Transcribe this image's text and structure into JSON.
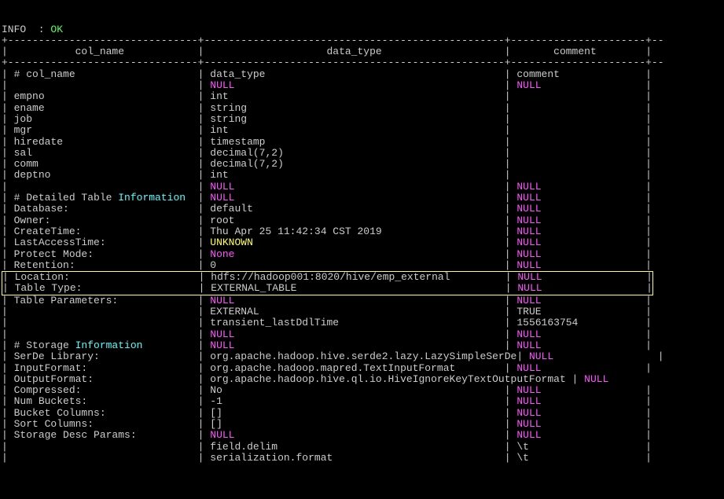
{
  "colors": {
    "background": "#000000",
    "text": "#cccccc",
    "green": "#55ff55",
    "magenta": "#ff55ff",
    "yellow": "#ffff55",
    "cyan": "#55ffff"
  },
  "info_line": {
    "prefix": "INFO  : ",
    "status": "OK"
  },
  "header": {
    "col1": "col_name",
    "col2": "data_type",
    "col3": "comment"
  },
  "layout": {
    "col1_width": 31,
    "col2_width": 49,
    "col3_width": 22
  },
  "rows": [
    {
      "c1": "# col_name",
      "c2": "data_type",
      "c3": "comment",
      "s1": "w",
      "s2": "w",
      "s3": "w"
    },
    {
      "c1": "",
      "c2": "NULL",
      "c3": "NULL",
      "s1": "w",
      "s2": "m",
      "s3": "m"
    },
    {
      "c1": "empno",
      "c2": "int",
      "c3": "",
      "s1": "w",
      "s2": "w",
      "s3": "w"
    },
    {
      "c1": "ename",
      "c2": "string",
      "c3": "",
      "s1": "w",
      "s2": "w",
      "s3": "w"
    },
    {
      "c1": "job",
      "c2": "string",
      "c3": "",
      "s1": "w",
      "s2": "w",
      "s3": "w"
    },
    {
      "c1": "mgr",
      "c2": "int",
      "c3": "",
      "s1": "w",
      "s2": "w",
      "s3": "w"
    },
    {
      "c1": "hiredate",
      "c2": "timestamp",
      "c3": "",
      "s1": "w",
      "s2": "w",
      "s3": "w"
    },
    {
      "c1": "sal",
      "c2": "decimal(7,2)",
      "c3": "",
      "s1": "w",
      "s2": "w",
      "s3": "w"
    },
    {
      "c1": "comm",
      "c2": "decimal(7,2)",
      "c3": "",
      "s1": "w",
      "s2": "w",
      "s3": "w"
    },
    {
      "c1": "deptno",
      "c2": "int",
      "c3": "",
      "s1": "w",
      "s2": "w",
      "s3": "w"
    },
    {
      "c1": "",
      "c2": "NULL",
      "c3": "NULL",
      "s1": "w",
      "s2": "m",
      "s3": "m"
    },
    {
      "c1": "# Detailed Table ",
      "c1b": "Information",
      "c2": "NULL",
      "c3": "NULL",
      "s1": "w",
      "s1b": "c",
      "s2": "m",
      "s3": "m"
    },
    {
      "c1": "Database:",
      "c2": "default",
      "c3": "NULL",
      "s1": "w",
      "s2": "w",
      "s3": "m"
    },
    {
      "c1": "Owner:",
      "c2": "root",
      "c3": "NULL",
      "s1": "w",
      "s2": "w",
      "s3": "m"
    },
    {
      "c1": "CreateTime:",
      "c2": "Thu Apr 25 11:42:34 CST 2019",
      "c3": "NULL",
      "s1": "w",
      "s2": "w",
      "s3": "m"
    },
    {
      "c1": "LastAccessTime:",
      "c2": "UNKNOWN",
      "c3": "NULL",
      "s1": "w",
      "s2": "y",
      "s3": "m"
    },
    {
      "c1": "Protect Mode:",
      "c2": "None",
      "c3": "NULL",
      "s1": "w",
      "s2": "m",
      "s3": "m"
    },
    {
      "c1": "Retention:",
      "c2": "0",
      "c3": "NULL",
      "s1": "w",
      "s2": "w",
      "s3": "m"
    },
    {
      "c1": "Location:",
      "c2": "hdfs://hadoop001:8020/hive/emp_external",
      "c3": "NULL",
      "s1": "w",
      "s2": "w",
      "s3": "m",
      "highlight": true
    },
    {
      "c1": "Table Type:",
      "c2": "EXTERNAL_TABLE",
      "c3": "NULL",
      "s1": "w",
      "s2": "w",
      "s3": "m",
      "highlight": true
    },
    {
      "c1": "Table Parameters:",
      "c2": "NULL",
      "c3": "NULL",
      "s1": "w",
      "s2": "m",
      "s3": "m"
    },
    {
      "c1": "",
      "c2": "EXTERNAL",
      "c3": "TRUE",
      "s1": "w",
      "s2": "w",
      "s3": "w"
    },
    {
      "c1": "",
      "c2": "transient_lastDdlTime",
      "c3": "1556163754",
      "s1": "w",
      "s2": "w",
      "s3": "w"
    },
    {
      "c1": "",
      "c2": "NULL",
      "c3": "NULL",
      "s1": "w",
      "s2": "m",
      "s3": "m"
    },
    {
      "c1": "# Storage ",
      "c1b": "Information",
      "c2": "NULL",
      "c3": "NULL",
      "s1": "w",
      "s1b": "c",
      "s2": "m",
      "s3": "m"
    },
    {
      "c1": "SerDe Library:",
      "c2": "org.apache.hadoop.hive.serde2.lazy.LazySimpleSerDe",
      "c3": "NULL",
      "s1": "w",
      "s2": "w",
      "s3": "m",
      "wide2": true
    },
    {
      "c1": "InputFormat:",
      "c2": "org.apache.hadoop.mapred.TextInputFormat",
      "c3": "NULL",
      "s1": "w",
      "s2": "w",
      "s3": "m"
    },
    {
      "c1": "OutputFormat:",
      "c2": "org.apache.hadoop.hive.ql.io.HiveIgnoreKeyTextOutputFormat ",
      "c3": "NULL",
      "s1": "w",
      "s2": "w",
      "s3": "m",
      "extra_pipe": true
    },
    {
      "c1": "Compressed:",
      "c2": "No",
      "c3": "NULL",
      "s1": "w",
      "s2": "w",
      "s3": "m"
    },
    {
      "c1": "Num Buckets:",
      "c2": "-1",
      "c3": "NULL",
      "s1": "w",
      "s2": "w",
      "s3": "m"
    },
    {
      "c1": "Bucket Columns:",
      "c2": "[]",
      "c3": "NULL",
      "s1": "w",
      "s2": "w",
      "s3": "m"
    },
    {
      "c1": "Sort Columns:",
      "c2": "[]",
      "c3": "NULL",
      "s1": "w",
      "s2": "w",
      "s3": "m"
    },
    {
      "c1": "Storage Desc Params:",
      "c2": "NULL",
      "c3": "NULL",
      "s1": "w",
      "s2": "m",
      "s3": "m"
    },
    {
      "c1": "",
      "c2": "field.delim",
      "c3": "\\t",
      "s1": "w",
      "s2": "w",
      "s3": "w"
    },
    {
      "c1": "",
      "c2": "serialization.format",
      "c3": "\\t",
      "s1": "w",
      "s2": "w",
      "s3": "w"
    }
  ]
}
